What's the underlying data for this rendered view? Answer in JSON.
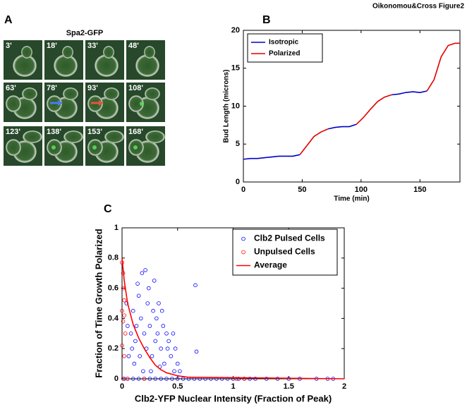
{
  "figure_label": "Oikonomou&Cross Figure2",
  "panels": [
    "A",
    "B",
    "C"
  ],
  "micrograph": {
    "title": "Spa2-GFP",
    "frames": [
      "3'",
      "18'",
      "33'",
      "48'",
      "63'",
      "78'",
      "93'",
      "108'",
      "123'",
      "138'",
      "153'",
      "168'"
    ]
  },
  "chart_data": [
    {
      "type": "line",
      "xlabel": "Time (min)",
      "ylabel": "Bud Length (microns)",
      "x": [
        0,
        6,
        12,
        18,
        24,
        30,
        36,
        42,
        48,
        54,
        60,
        66,
        72,
        78,
        84,
        90,
        96,
        102,
        108,
        114,
        120,
        126,
        132,
        138,
        144,
        150,
        156,
        162,
        168,
        174,
        180,
        184
      ],
      "series": [
        {
          "name": "Isotropic",
          "color": "#0000c8",
          "values": [
            3.0,
            3.1,
            3.1,
            3.2,
            3.3,
            3.4,
            3.4,
            3.4,
            3.6,
            null,
            null,
            null,
            7.0,
            7.2,
            7.3,
            7.3,
            7.6,
            null,
            null,
            null,
            null,
            11.5,
            11.6,
            11.8,
            11.9,
            11.8,
            12.0,
            null,
            null,
            null,
            null,
            null
          ]
        },
        {
          "name": "Polarized",
          "color": "#e00000",
          "values": [
            null,
            null,
            null,
            null,
            null,
            null,
            null,
            null,
            3.6,
            4.8,
            6.0,
            6.6,
            7.0,
            null,
            null,
            null,
            7.6,
            8.5,
            9.6,
            10.6,
            11.2,
            11.5,
            null,
            null,
            null,
            null,
            12.0,
            13.5,
            16.5,
            18.0,
            18.3,
            18.3
          ]
        }
      ],
      "xlim": [
        0,
        184
      ],
      "xticks": [
        0,
        50,
        100,
        150
      ],
      "ylim": [
        0,
        20
      ],
      "yticks": [
        0,
        5,
        10,
        15,
        20
      ],
      "legend": "upper left"
    },
    {
      "type": "scatter",
      "xlabel": "Clb2-YFP Nuclear Intensity (Fraction of Peak)",
      "ylabel": "Fraction of Time Growth Polarized",
      "series": [
        {
          "name": "Clb2 Pulsed Cells",
          "color": "#0000ff",
          "style": "circle",
          "x": [
            0.02,
            0.05,
            0.1,
            0.15,
            0.2,
            0.25,
            0.3,
            0.35,
            0.4,
            0.45,
            0.5,
            0.55,
            0.6,
            0.65,
            0.7,
            0.75,
            0.8,
            0.85,
            0.9,
            0.95,
            1.0,
            1.05,
            1.1,
            1.15,
            1.2,
            1.3,
            1.4,
            1.5,
            1.6,
            1.75,
            1.85,
            1.9,
            0.05,
            0.08,
            0.1,
            0.12,
            0.15,
            0.17,
            0.18,
            0.2,
            0.22,
            0.24,
            0.25,
            0.27,
            0.28,
            0.3,
            0.32,
            0.33,
            0.35,
            0.37,
            0.38,
            0.4,
            0.42,
            0.44,
            0.46,
            0.48,
            0.5,
            0.52,
            0.21,
            0.14,
            0.19,
            0.26,
            0.66,
            0.67,
            0.09,
            0.11,
            0.13,
            0.16,
            0.23,
            0.29,
            0.31,
            0.36,
            0.34,
            0.41,
            0.47,
            0.06,
            0.04
          ],
          "values": [
            0,
            0,
            0,
            0,
            0,
            0,
            0,
            0,
            0,
            0,
            0,
            0,
            0,
            0,
            0,
            0,
            0,
            0,
            0,
            0,
            0,
            0,
            0,
            0,
            0,
            0,
            0,
            0,
            0,
            0,
            0,
            0,
            0.35,
            0.3,
            0.45,
            0.25,
            0.55,
            0.4,
            0.7,
            0.3,
            0.2,
            0.6,
            0.35,
            0.15,
            0.45,
            0.25,
            0.3,
            0.5,
            0.2,
            0.35,
            0.1,
            0.3,
            0.25,
            0.15,
            0.3,
            0.2,
            0.1,
            0.05,
            0.72,
            0.63,
            0.05,
            0.05,
            0.62,
            0.18,
            0.2,
            0.1,
            0.35,
            0.15,
            0.5,
            0.65,
            0.4,
            0.45,
            0.08,
            0.2,
            0.05,
            0.15,
            0.5
          ]
        },
        {
          "name": "Unpulsed Cells",
          "color": "#ff0000",
          "style": "circle",
          "x": [
            0,
            0.01,
            0.01,
            0.02,
            0,
            0.02,
            0.01,
            0.03,
            0,
            0.02,
            0.01,
            0.05,
            0.2,
            1.03,
            1.1
          ],
          "values": [
            0.77,
            0.7,
            0.6,
            0.52,
            0.45,
            0.42,
            0.38,
            0.3,
            0.22,
            0.15,
            0,
            0,
            0,
            0,
            0
          ]
        },
        {
          "name": "Average",
          "color": "#ff0000",
          "style": "line",
          "x": [
            0,
            0.02,
            0.05,
            0.1,
            0.15,
            0.2,
            0.25,
            0.3,
            0.35,
            0.4,
            0.5,
            0.6,
            2
          ],
          "values": [
            0.8,
            0.65,
            0.5,
            0.36,
            0.27,
            0.2,
            0.14,
            0.09,
            0.06,
            0.04,
            0.02,
            0.01,
            0
          ]
        }
      ],
      "xlim": [
        0,
        2
      ],
      "xticks": [
        0,
        0.5,
        1,
        1.5,
        2
      ],
      "ylim": [
        0,
        1
      ],
      "yticks": [
        0,
        0.2,
        0.4,
        0.6,
        0.8,
        1
      ],
      "legend": "upper right"
    }
  ]
}
